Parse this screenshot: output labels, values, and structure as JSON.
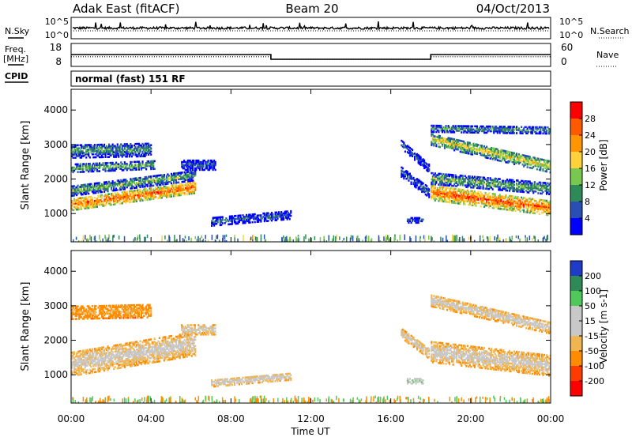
{
  "header": {
    "station": "Adak East (fitACF)",
    "beam": "Beam 20",
    "date": "04/Oct/2013"
  },
  "labels": {
    "nsky": "N.Sky",
    "nsearch": "N.Search",
    "freq_line1": "Freq.",
    "freq_line2": "[MHz]",
    "nave": "Nave",
    "cpid": "CPID",
    "mode": "normal (fast) 151 RF"
  },
  "noise_panel": {
    "left_ticks": [
      "10^5",
      "10^0"
    ],
    "right_ticks": [
      "10^5",
      "10^0"
    ]
  },
  "freq_panel": {
    "left_ticks": [
      "18",
      "8"
    ],
    "right_ticks": [
      "60",
      "0"
    ],
    "freq_mhz_segments": [
      {
        "from": 0,
        "to": 10,
        "value": 13.5
      },
      {
        "from": 10,
        "to": 18,
        "value": 10.5
      },
      {
        "from": 18,
        "to": 24,
        "value": 13.5
      }
    ],
    "nave_segments": [
      {
        "from": 0,
        "to": 10,
        "value": 23
      },
      {
        "from": 10,
        "to": 18,
        "value": 15
      },
      {
        "from": 18,
        "to": 24,
        "value": 23
      }
    ]
  },
  "axes": {
    "xlabel": "Time UT",
    "x_ticks": [
      "00:00",
      "04:00",
      "08:00",
      "12:00",
      "16:00",
      "20:00",
      "00:00"
    ],
    "x_tick_hours": [
      0,
      4,
      8,
      12,
      16,
      20,
      24
    ],
    "xlim_hours": [
      0,
      24
    ],
    "ylabel": "Slant Range [km]",
    "y_ticks": [
      "1000",
      "2000",
      "3000",
      "4000"
    ],
    "y_tick_values": [
      1000,
      2000,
      3000,
      4000
    ],
    "ylim_km": [
      180,
      4600
    ]
  },
  "colorbars": {
    "power": {
      "label": "Power [dB]",
      "ticks": [
        "28",
        "24",
        "20",
        "16",
        "12",
        "8",
        "4"
      ],
      "colors": [
        "#ff0000",
        "#ff5a00",
        "#ff9600",
        "#ffd23c",
        "#78c850",
        "#2e8b57",
        "#2850b4",
        "#0000ff"
      ]
    },
    "velocity": {
      "label": "Velocity [m s-1]",
      "ticks": [
        "200",
        "100",
        "50",
        "15",
        "-15",
        "-50",
        "-100",
        "-200"
      ],
      "colors": [
        "#1e3cc8",
        "#2e8b57",
        "#50c85a",
        "#c8c8c8",
        "#c8c8c8",
        "#f0b450",
        "#ff8c00",
        "#ff3c00",
        "#ff0000"
      ]
    }
  },
  "chart_data": [
    {
      "type": "heatmap",
      "title": "",
      "quantity": "Power [dB]",
      "xlabel": "Time UT",
      "ylabel": "Slant Range [km]",
      "xlim": [
        "00:00",
        "24:00"
      ],
      "ylim": [
        180,
        4600
      ],
      "regions": [
        {
          "t0": 0.0,
          "t1": 6.2,
          "r_center_start": 1250,
          "r_center_end": 1750,
          "half_width": 170,
          "value": 26
        },
        {
          "t0": 0.0,
          "t1": 6.2,
          "r_center_start": 1650,
          "r_center_end": 2100,
          "half_width": 150,
          "value": 14
        },
        {
          "t0": 0.0,
          "t1": 4.2,
          "r_center_start": 2300,
          "r_center_end": 2400,
          "half_width": 120,
          "value": 14
        },
        {
          "t0": 0.0,
          "t1": 4.0,
          "r_center_start": 2800,
          "r_center_end": 2850,
          "half_width": 200,
          "value": 12
        },
        {
          "t0": 5.5,
          "t1": 7.2,
          "r_center_start": 2400,
          "r_center_end": 2400,
          "half_width": 150,
          "value": 8
        },
        {
          "t0": 7.0,
          "t1": 11.0,
          "r_center_start": 750,
          "r_center_end": 950,
          "half_width": 120,
          "value": 8
        },
        {
          "t0": 16.5,
          "t1": 17.9,
          "r_center_start": 2200,
          "r_center_end": 1600,
          "half_width": 150,
          "value": 9
        },
        {
          "t0": 16.5,
          "t1": 17.9,
          "r_center_start": 3000,
          "r_center_end": 2300,
          "half_width": 130,
          "value": 8
        },
        {
          "t0": 16.8,
          "t1": 17.6,
          "r_center_start": 800,
          "r_center_end": 800,
          "half_width": 80,
          "value": 7
        },
        {
          "t0": 18.0,
          "t1": 24.0,
          "r_center_start": 1600,
          "r_center_end": 1150,
          "half_width": 220,
          "value": 26
        },
        {
          "t0": 18.0,
          "t1": 24.0,
          "r_center_start": 2000,
          "r_center_end": 1700,
          "half_width": 160,
          "value": 14
        },
        {
          "t0": 18.0,
          "t1": 24.0,
          "r_center_start": 3150,
          "r_center_end": 2350,
          "half_width": 180,
          "value": 18
        },
        {
          "t0": 18.0,
          "t1": 24.0,
          "r_center_start": 3450,
          "r_center_end": 3400,
          "half_width": 100,
          "value": 12
        }
      ]
    },
    {
      "type": "heatmap",
      "title": "",
      "quantity": "Velocity [m s-1]",
      "xlabel": "Time UT",
      "ylabel": "Slant Range [km]",
      "xlim": [
        "00:00",
        "24:00"
      ],
      "ylim": [
        180,
        4600
      ],
      "regions": [
        {
          "t0": 0.0,
          "t1": 6.2,
          "r_center_start": 1300,
          "r_center_end": 1900,
          "half_width": 350,
          "value": 0
        },
        {
          "t0": 0.0,
          "t1": 4.0,
          "r_center_start": 2800,
          "r_center_end": 2850,
          "half_width": 200,
          "value": -30
        },
        {
          "t0": 5.5,
          "t1": 7.2,
          "r_center_start": 2300,
          "r_center_end": 2300,
          "half_width": 150,
          "value": 0
        },
        {
          "t0": 7.0,
          "t1": 11.0,
          "r_center_start": 750,
          "r_center_end": 950,
          "half_width": 110,
          "value": 5
        },
        {
          "t0": 16.5,
          "t1": 17.9,
          "r_center_start": 2200,
          "r_center_end": 1600,
          "half_width": 150,
          "value": 0
        },
        {
          "t0": 16.8,
          "t1": 17.6,
          "r_center_start": 800,
          "r_center_end": 800,
          "half_width": 70,
          "value": 40
        },
        {
          "t0": 18.0,
          "t1": 24.0,
          "r_center_start": 1650,
          "r_center_end": 1250,
          "half_width": 300,
          "value": 0
        },
        {
          "t0": 18.0,
          "t1": 24.0,
          "r_center_start": 3150,
          "r_center_end": 2350,
          "half_width": 180,
          "value": 0
        }
      ]
    }
  ]
}
